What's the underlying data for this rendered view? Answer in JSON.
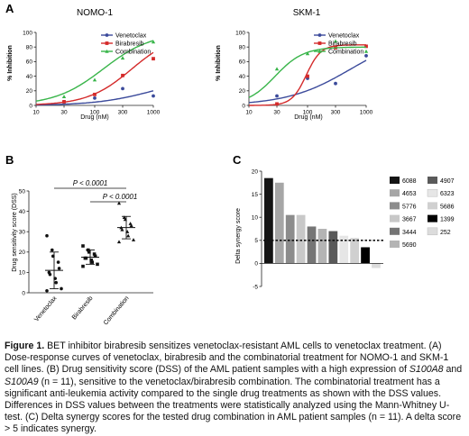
{
  "panels": {
    "A": "A",
    "B": "B",
    "C": "C"
  },
  "chart_data": [
    {
      "type": "line",
      "title": "NOMO-1",
      "xlabel": "Drug (nM)",
      "ylabel": "% Inhibition",
      "xscale": "log",
      "xlim": [
        10,
        1000
      ],
      "ylim": [
        0,
        100
      ],
      "xticks": [
        "10",
        "30",
        "100",
        "300",
        "1000"
      ],
      "yticks": [
        "0",
        "20",
        "40",
        "60",
        "80",
        "100"
      ],
      "legend_position": "top-right",
      "series": [
        {
          "name": "Venetoclax",
          "color": "#3b4a9b",
          "marker": "circle",
          "points_x": [
            30,
            100,
            300,
            1000
          ],
          "points_y": [
            5,
            10,
            23,
            13
          ],
          "fit": {
            "top": 40,
            "ec50": 1000,
            "hill": 0.9
          }
        },
        {
          "name": "Birabresib",
          "color": "#d42a2a",
          "marker": "square",
          "points_x": [
            30,
            100,
            300,
            1000
          ],
          "points_y": [
            5,
            15,
            41,
            64
          ],
          "fit": {
            "top": 100,
            "ec50": 430,
            "hill": 1.15
          }
        },
        {
          "name": "Combination",
          "color": "#39b54a",
          "marker": "triangle",
          "points_x": [
            30,
            100,
            300,
            1000
          ],
          "points_y": [
            12,
            35,
            65,
            87
          ],
          "fit": {
            "top": 100,
            "ec50": 140,
            "hill": 1.05
          }
        }
      ]
    },
    {
      "type": "line",
      "title": "SKM-1",
      "xlabel": "Drug (nM)",
      "ylabel": "% Inhibition",
      "xscale": "log",
      "xlim": [
        10,
        1000
      ],
      "ylim": [
        0,
        100
      ],
      "xticks": [
        "10",
        "30",
        "100",
        "300",
        "1000"
      ],
      "yticks": [
        "0",
        "20",
        "40",
        "60",
        "80",
        "100"
      ],
      "legend_position": "top-right",
      "series": [
        {
          "name": "Venetoclax",
          "color": "#3b4a9b",
          "marker": "circle",
          "points_x": [
            30,
            100,
            300,
            1000
          ],
          "points_y": [
            13,
            37,
            30,
            68
          ],
          "fit": {
            "top": 100,
            "ec50": 550,
            "hill": 0.8
          }
        },
        {
          "name": "Birabresib",
          "color": "#d42a2a",
          "marker": "square",
          "points_x": [
            30,
            100,
            300,
            1000
          ],
          "points_y": [
            2,
            40,
            79,
            81
          ],
          "fit": {
            "top": 83,
            "ec50": 95,
            "hill": 3.5
          }
        },
        {
          "name": "Combination",
          "color": "#39b54a",
          "marker": "triangle",
          "points_x": [
            30,
            100,
            300,
            1000
          ],
          "points_y": [
            50,
            71,
            88,
            74
          ],
          "fit": {
            "top": 80,
            "ec50": 28,
            "hill": 1.8
          }
        }
      ]
    },
    {
      "type": "scatter",
      "ylabel": "Drug sensitivity score (DSS)",
      "ylim": [
        0,
        50
      ],
      "yticks": [
        "0",
        "10",
        "20",
        "30",
        "40",
        "50"
      ],
      "categories": [
        "Venetoclax",
        "Birabresib",
        "Combination"
      ],
      "groups": [
        {
          "name": "Venetoclax",
          "marker": "circle",
          "values": [
            28,
            21,
            18,
            15,
            12,
            10,
            9,
            7,
            5,
            2,
            1
          ],
          "mean": 11,
          "sd": 9
        },
        {
          "name": "Birabresib",
          "marker": "square",
          "values": [
            23,
            21,
            20,
            19,
            18,
            17,
            17,
            16,
            15,
            14,
            13
          ],
          "mean": 17.5,
          "sd": 3.5
        },
        {
          "name": "Combination",
          "marker": "triangle",
          "values": [
            44,
            37,
            36,
            34,
            33,
            32,
            31,
            30,
            28,
            26,
            25
          ],
          "mean": 32,
          "sd": 5.5
        }
      ],
      "annotations": [
        {
          "text": "P < 0.0001",
          "from": "Venetoclax",
          "to": "Combination"
        },
        {
          "text": "P < 0.0001",
          "from": "Birabresib",
          "to": "Combination"
        }
      ]
    },
    {
      "type": "bar",
      "ylabel": "Delta synergy score",
      "ylim": [
        -5,
        20
      ],
      "yticks": [
        "-5",
        "0",
        "5",
        "10",
        "15",
        "20"
      ],
      "threshold": 5,
      "legend_position": "right",
      "categories": [
        "6088",
        "4653",
        "5776",
        "3667",
        "3444",
        "5690",
        "4907",
        "6323",
        "5686",
        "1399",
        "252"
      ],
      "values": [
        18.5,
        17.5,
        10.5,
        10.5,
        8,
        7.5,
        7,
        6,
        5.5,
        3.5,
        -1
      ],
      "colors": [
        "#141414",
        "#a6a6a6",
        "#8c8c8c",
        "#c8c8c8",
        "#757575",
        "#b4b4b4",
        "#5a5a5a",
        "#e6e6e6",
        "#d0d0d0",
        "#000000",
        "#dcdcdc"
      ]
    }
  ],
  "caption": {
    "lead": "Figure 1.",
    "text_1": " BET inhibitor birabresib sensitizes venetoclax-resistant AML cells to venetoclax treatment. (A) Dose-response curves of venetoclax, birabresib and the combinatorial treatment for NOMO-1 and SKM-1 cell lines. (B) Drug sensitivity score (DSS) of the AML patient samples with a high expression of ",
    "gene_1": "S100A8",
    "text_2": " and ",
    "gene_2": "S100A9",
    "text_3": " (n = 11), sensitive to the venetoclax/birabresib combination. The combinatorial treatment has a significant anti-leukemia activity compared to the single drug treatments as shown with the DSS values. Differences in DSS values between the treatments were statistically analyzed using the Mann-Whitney U-test. (C) Delta synergy scores for the tested drug combination in AML patient samples (n = 11). A delta score > 5 indicates synergy."
  }
}
